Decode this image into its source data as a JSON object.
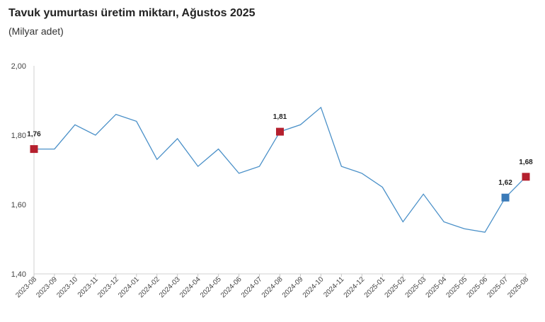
{
  "chart_data": {
    "type": "line",
    "title": "Tavuk yumurtası üretim miktarı, Ağustos 2025",
    "subtitle": "(Milyar adet)",
    "xlabel": "",
    "ylabel": "",
    "ylim": [
      1.4,
      2.0
    ],
    "yticks": [
      "1,40",
      "1,60",
      "1,80",
      "2,00"
    ],
    "ytick_values": [
      1.4,
      1.6,
      1.8,
      2.0
    ],
    "grid": false,
    "line_color": "#4a90c8",
    "categories": [
      "2023-08",
      "2023-09",
      "2023-10",
      "2023-11",
      "2023-12",
      "2024-01",
      "2024-02",
      "2024-03",
      "2024-04",
      "2024-05",
      "2024-06",
      "2024-07",
      "2024-08",
      "2024-09",
      "2024-10",
      "2024-11",
      "2024-12",
      "2025-01",
      "2025-02",
      "2025-03",
      "2025-04",
      "2025-05",
      "2025-06",
      "2025-07",
      "2025-08"
    ],
    "values": [
      1.76,
      1.76,
      1.83,
      1.8,
      1.86,
      1.84,
      1.73,
      1.79,
      1.71,
      1.76,
      1.69,
      1.71,
      1.81,
      1.83,
      1.88,
      1.71,
      1.69,
      1.65,
      1.55,
      1.63,
      1.55,
      1.53,
      1.52,
      1.62,
      1.68
    ],
    "highlights": [
      {
        "index": 0,
        "label": "1,76",
        "color": "#b5202e"
      },
      {
        "index": 12,
        "label": "1,81",
        "color": "#b5202e"
      },
      {
        "index": 23,
        "label": "1,62",
        "color": "#3a7ab8"
      },
      {
        "index": 24,
        "label": "1,68",
        "color": "#b5202e"
      }
    ]
  }
}
